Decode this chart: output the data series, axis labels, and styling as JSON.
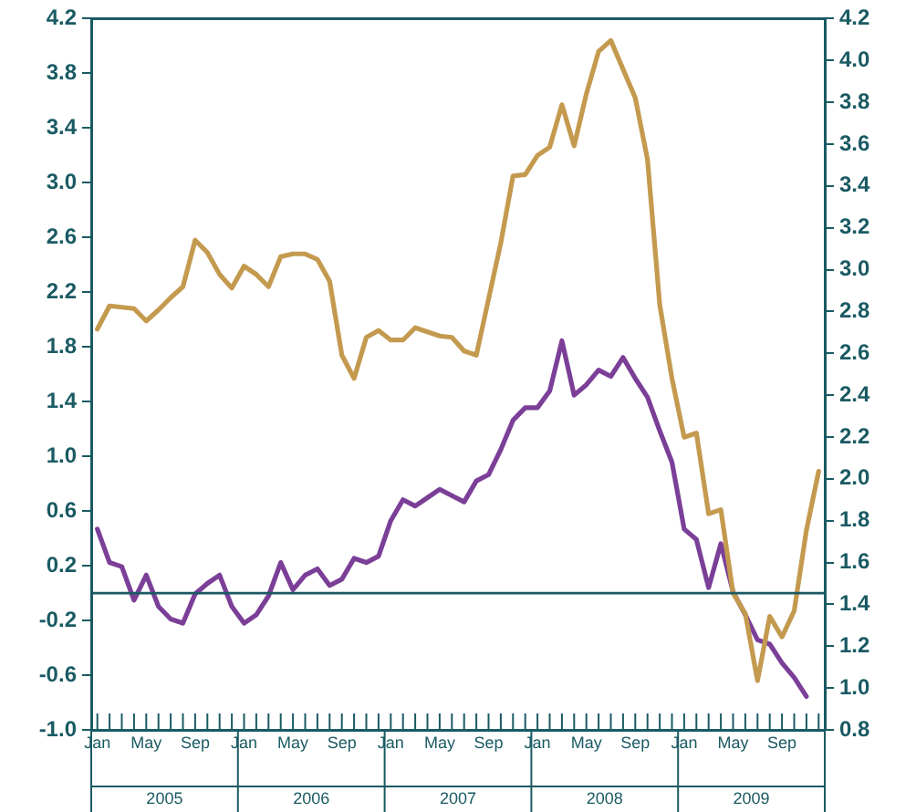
{
  "chart_data": {
    "type": "line",
    "categories": [
      "Jan",
      null,
      null,
      null,
      "May",
      null,
      null,
      null,
      "Sep",
      null,
      null,
      null,
      "Jan",
      null,
      null,
      null,
      "May",
      null,
      null,
      null,
      "Sep",
      null,
      null,
      null,
      "Jan",
      null,
      null,
      null,
      "May",
      null,
      null,
      null,
      "Sep",
      null,
      null,
      null,
      "Jan",
      null,
      null,
      null,
      "May",
      null,
      null,
      null,
      "Sep",
      null,
      null,
      null,
      "Jan",
      null,
      null,
      null,
      "May",
      null,
      null,
      null,
      "Sep",
      null,
      null,
      null
    ],
    "series": [
      {
        "color": "#c49a4f",
        "values": [
          1.93,
          2.1,
          2.09,
          2.08,
          1.99,
          2.07,
          2.16,
          2.24,
          2.58,
          2.49,
          2.33,
          2.23,
          2.39,
          2.33,
          2.24,
          2.46,
          2.48,
          2.48,
          2.44,
          2.28,
          1.74,
          1.57,
          1.87,
          1.92,
          1.85,
          1.85,
          1.94,
          1.91,
          1.88,
          1.87,
          1.77,
          1.74,
          2.15,
          2.56,
          3.05,
          3.06,
          3.2,
          3.26,
          3.57,
          3.27,
          3.65,
          3.96,
          4.04,
          3.83,
          3.62,
          3.17,
          2.11,
          1.57,
          1.14,
          1.17,
          0.58,
          0.61,
          0.0,
          -0.15,
          -0.64,
          -0.17,
          -0.32,
          -0.13,
          0.46,
          0.89
        ]
      },
      {
        "color": "#7b3f98",
        "axis": "y2",
        "values": [
          1.76,
          1.6,
          1.58,
          1.42,
          1.54,
          1.39,
          1.33,
          1.31,
          1.45,
          1.5,
          1.54,
          1.39,
          1.31,
          1.35,
          1.44,
          1.6,
          1.47,
          1.54,
          1.57,
          1.49,
          1.52,
          1.62,
          1.6,
          1.63,
          1.8,
          1.9,
          1.87,
          1.91,
          1.95,
          1.92,
          1.89,
          1.99,
          2.02,
          2.14,
          2.28,
          2.34,
          2.34,
          2.42,
          2.66,
          2.4,
          2.45,
          2.52,
          2.49,
          2.58,
          2.48,
          2.39,
          2.23,
          2.08,
          1.76,
          1.71,
          1.48,
          1.69,
          1.46,
          1.35,
          1.23,
          1.21,
          1.12,
          1.05,
          0.96,
          null
        ]
      }
    ],
    "ylim": [
      -1.0,
      4.2
    ],
    "yticks": [
      {
        "value": -1.0,
        "label": "-1.0"
      },
      -0.6,
      -0.2,
      0.2,
      0.6,
      {
        "value": 1.0,
        "label": "1.0"
      },
      1.4,
      1.8,
      2.2,
      2.6,
      {
        "value": 3.0,
        "label": "3.0"
      },
      3.4,
      3.8,
      4.2
    ],
    "y2lim": [
      0.8,
      4.2
    ],
    "y2ticks": [
      0.8,
      {
        "value": 1.0,
        "label": "1.0"
      },
      1.2,
      1.4,
      1.6,
      1.8,
      {
        "value": 2.0,
        "label": "2.0"
      },
      2.2,
      2.4,
      2.6,
      2.8,
      {
        "value": 3.0,
        "label": "3.0"
      },
      3.2,
      3.4,
      3.6,
      3.8,
      {
        "value": 4.0,
        "label": "4.0"
      },
      4.2
    ],
    "ref_lines": [
      {
        "axis": "y",
        "value": 0,
        "color": "#1a5a63"
      }
    ],
    "annotations": [
      "2005",
      "2006",
      "2007",
      "2008",
      "2009"
    ],
    "grid": false,
    "legend": false,
    "marker": "none",
    "line_style": "solid"
  }
}
